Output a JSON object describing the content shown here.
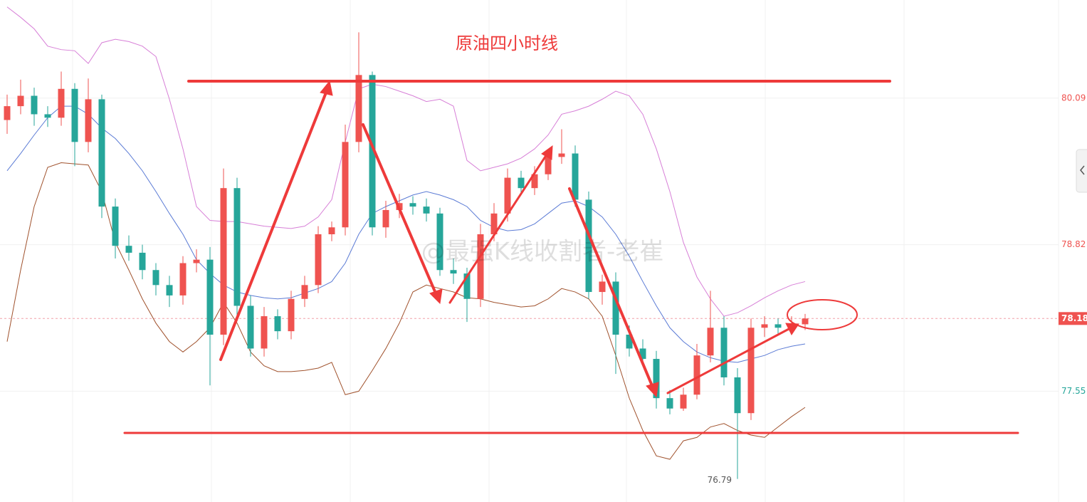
{
  "chart_data": {
    "type": "candlestick",
    "title": "原油四小时线",
    "watermark": "@最强K线收割者-老崔",
    "open": [
      79.9,
      80.02,
      80.11,
      79.95,
      79.92,
      80.17,
      79.71,
      80.08,
      79.15,
      78.81,
      78.75,
      78.6,
      78.47,
      78.38,
      78.66,
      78.69,
      78.04,
      79.31,
      78.29,
      77.92,
      78.2,
      78.07,
      78.35,
      78.47,
      78.91,
      78.97,
      79.71,
      80.29,
      78.97,
      79.12,
      79.18,
      79.15,
      79.09,
      78.6,
      78.57,
      78.35,
      78.91,
      79.09,
      79.4,
      79.31,
      79.43,
      79.58,
      79.61,
      79.21,
      78.41,
      78.5,
      78.04,
      77.92,
      77.83,
      77.49,
      77.4,
      77.52,
      77.86,
      78.1,
      77.67,
      77.36,
      78.1,
      78.13,
      78.1,
      78.13
    ],
    "high": [
      80.12,
      80.25,
      80.18,
      80.02,
      80.32,
      80.22,
      80.26,
      80.12,
      79.22,
      78.9,
      78.82,
      78.66,
      78.55,
      78.72,
      78.78,
      78.8,
      79.48,
      79.4,
      78.38,
      78.28,
      78.26,
      78.42,
      78.55,
      78.98,
      79.02,
      79.86,
      80.66,
      80.32,
      79.2,
      79.26,
      79.24,
      79.22,
      79.14,
      78.7,
      78.62,
      79.0,
      79.18,
      79.48,
      79.46,
      79.5,
      79.65,
      79.82,
      79.68,
      79.28,
      78.56,
      78.58,
      78.12,
      78.0,
      77.9,
      77.56,
      77.58,
      77.96,
      78.42,
      78.2,
      77.75,
      78.18,
      78.2,
      78.18,
      78.2,
      78.22
    ],
    "low": [
      79.78,
      79.95,
      79.85,
      79.84,
      79.85,
      79.5,
      79.62,
      79.05,
      78.7,
      78.68,
      78.52,
      78.38,
      78.28,
      78.3,
      78.58,
      77.6,
      77.95,
      78.2,
      77.85,
      77.85,
      78.0,
      78.0,
      78.28,
      78.4,
      78.85,
      78.9,
      79.62,
      78.9,
      78.88,
      79.05,
      79.08,
      79.02,
      78.55,
      78.48,
      78.15,
      78.28,
      78.85,
      79.02,
      79.25,
      79.25,
      79.38,
      79.52,
      79.15,
      78.35,
      78.3,
      77.7,
      77.85,
      77.78,
      77.4,
      77.35,
      77.38,
      77.48,
      77.8,
      77.6,
      76.79,
      77.3,
      78.02,
      78.05,
      78.05,
      78.08
    ],
    "close": [
      80.02,
      80.11,
      79.95,
      79.92,
      80.17,
      79.71,
      80.08,
      79.15,
      78.81,
      78.75,
      78.6,
      78.47,
      78.38,
      78.66,
      78.69,
      78.04,
      79.31,
      78.29,
      77.92,
      78.2,
      78.07,
      78.35,
      78.47,
      78.91,
      78.97,
      79.71,
      80.29,
      78.97,
      79.12,
      79.18,
      79.15,
      79.09,
      78.6,
      78.57,
      78.35,
      78.91,
      79.09,
      79.4,
      79.31,
      79.43,
      79.58,
      79.61,
      79.21,
      78.41,
      78.5,
      78.04,
      77.92,
      77.83,
      77.49,
      77.4,
      77.52,
      77.86,
      78.1,
      77.67,
      77.36,
      78.1,
      78.13,
      78.1,
      78.13,
      78.18
    ],
    "up_color": "#ef5350",
    "down_color": "#26a69a",
    "series": [
      {
        "color": "#d77fd7",
        "values": [
          80.88,
          80.79,
          80.69,
          80.54,
          80.51,
          80.5,
          80.39,
          80.57,
          80.6,
          80.58,
          80.54,
          80.45,
          80.08,
          79.65,
          79.15,
          79.03,
          79.02,
          79.02,
          79.0,
          78.98,
          78.97,
          78.96,
          78.98,
          79.06,
          79.21,
          79.71,
          80.17,
          80.21,
          80.19,
          80.15,
          80.11,
          80.06,
          80.08,
          80.02,
          79.55,
          79.46,
          79.49,
          79.52,
          79.57,
          79.65,
          79.77,
          79.95,
          79.98,
          80.02,
          80.08,
          80.15,
          80.11,
          79.95,
          79.65,
          79.28,
          78.84,
          78.54,
          78.35,
          78.2,
          78.23,
          78.29,
          78.36,
          78.42,
          78.47,
          78.5
        ]
      },
      {
        "color": "#5b7bd5",
        "values": [
          79.46,
          79.61,
          79.77,
          79.92,
          80.02,
          80.02,
          79.95,
          79.83,
          79.74,
          79.61,
          79.46,
          79.28,
          79.09,
          78.91,
          78.69,
          78.57,
          78.47,
          78.41,
          78.38,
          78.36,
          78.35,
          78.36,
          78.4,
          78.44,
          78.5,
          78.66,
          78.91,
          79.09,
          79.15,
          79.2,
          79.25,
          79.28,
          79.25,
          79.21,
          79.15,
          79.03,
          78.97,
          78.94,
          78.95,
          79.0,
          79.09,
          79.18,
          79.2,
          79.15,
          79.06,
          78.91,
          78.72,
          78.5,
          78.29,
          78.1,
          77.98,
          77.89,
          77.84,
          77.81,
          77.8,
          77.83,
          77.86,
          77.91,
          77.94,
          77.96
        ]
      },
      {
        "color": "#a0522d",
        "values": [
          77.98,
          78.6,
          79.15,
          79.49,
          79.53,
          79.52,
          79.51,
          79.28,
          78.84,
          78.6,
          78.35,
          78.14,
          77.98,
          77.89,
          77.98,
          78.1,
          78.32,
          78.14,
          77.89,
          77.77,
          77.72,
          77.72,
          77.73,
          77.75,
          77.8,
          77.52,
          77.55,
          77.73,
          77.92,
          78.14,
          78.41,
          78.47,
          78.44,
          78.41,
          78.36,
          78.35,
          78.32,
          78.3,
          78.28,
          78.29,
          78.35,
          78.44,
          78.41,
          78.35,
          78.2,
          77.86,
          77.49,
          77.21,
          76.99,
          76.96,
          77.12,
          77.15,
          77.24,
          77.27,
          77.21,
          77.17,
          77.15,
          77.24,
          77.33,
          77.41
        ]
      }
    ],
    "ylim": [
      76.59,
      80.94
    ],
    "yticks": [
      77.55,
      78.82,
      80.09
    ],
    "grid": true
  }
}
